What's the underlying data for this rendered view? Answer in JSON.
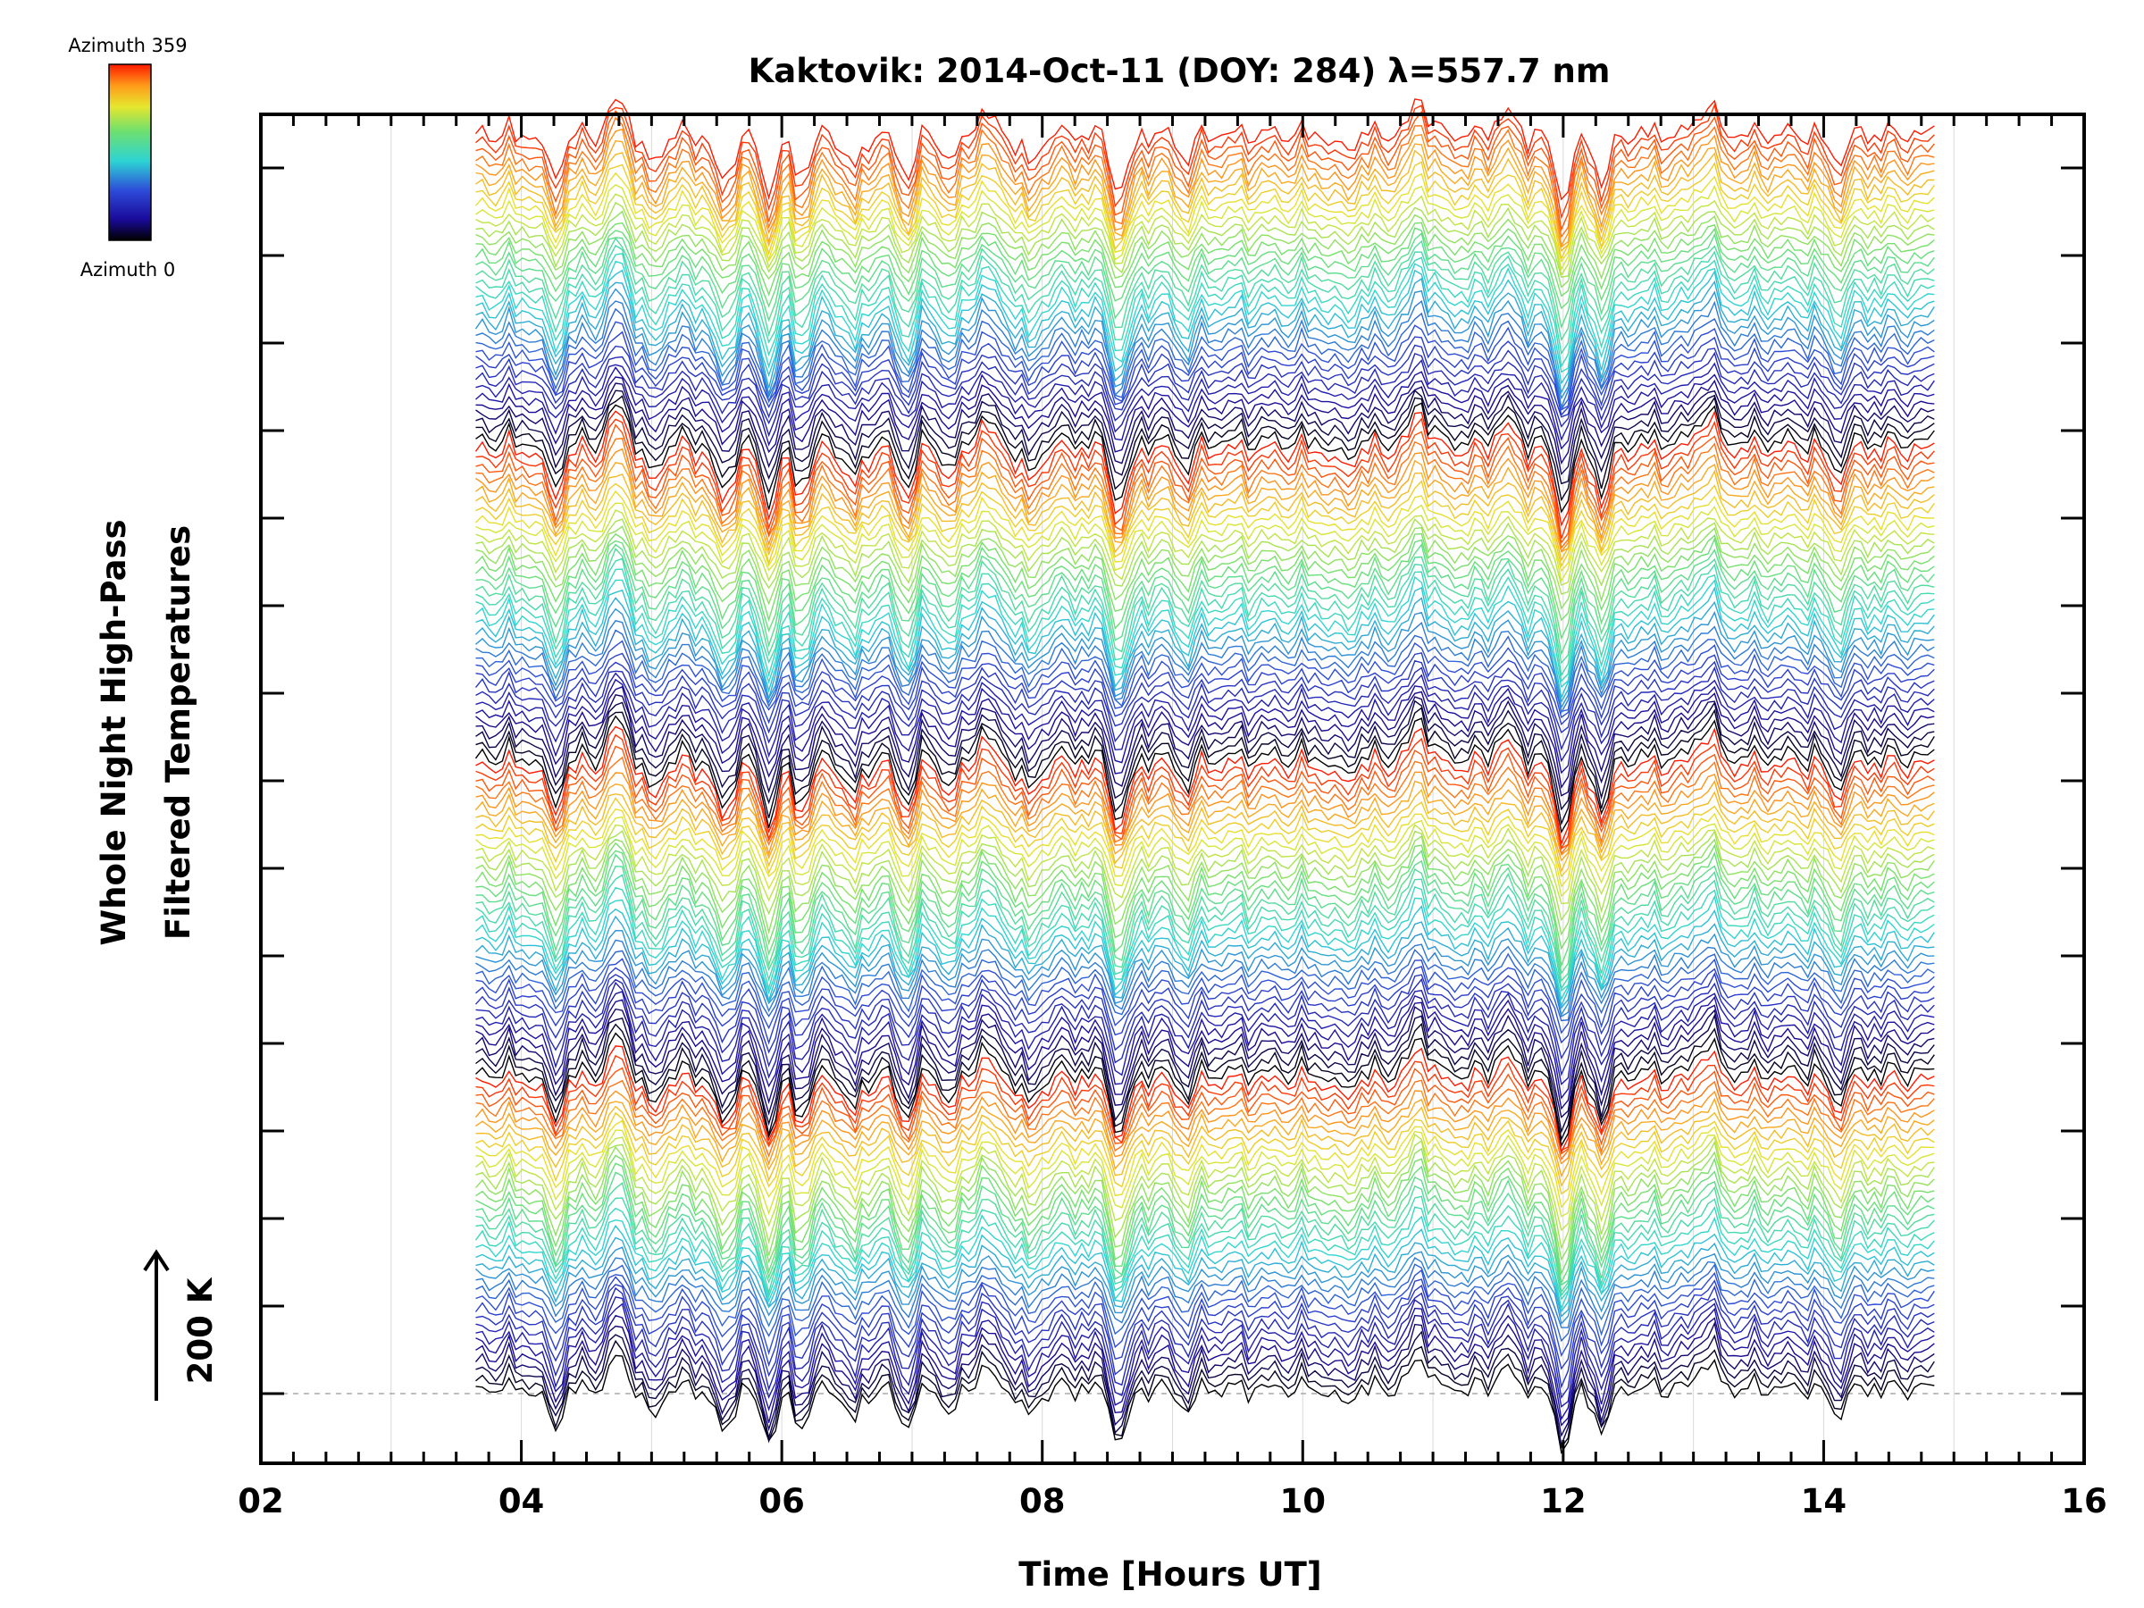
{
  "chart_data": {
    "type": "line",
    "title": "Kaktovik: 2014-Oct-11 (DOY: 284) λ=557.7 nm",
    "xlabel": "Time [Hours UT]",
    "ylabel_line1": "Whole Night High-Pass",
    "ylabel_line2": "Filtered Temperatures",
    "scale_label": "200 K",
    "xlim": [
      2,
      16
    ],
    "x_ticks": [
      "02",
      "04",
      "06",
      "08",
      "10",
      "12",
      "14",
      "16"
    ],
    "data_x_range": [
      3.65,
      14.85
    ],
    "num_traces": 144,
    "baseline": "dashed grey line at lowest trace baseline",
    "colorbar": {
      "top_label": "Azimuth 359",
      "bottom_label": "Azimuth 0",
      "colormap": "rainbow (black-blue-cyan-green-yellow-orange-red)"
    },
    "notes": "Stacked (offset) time series of filtered temperature for each azimuth, colour-coded by azimuth."
  }
}
